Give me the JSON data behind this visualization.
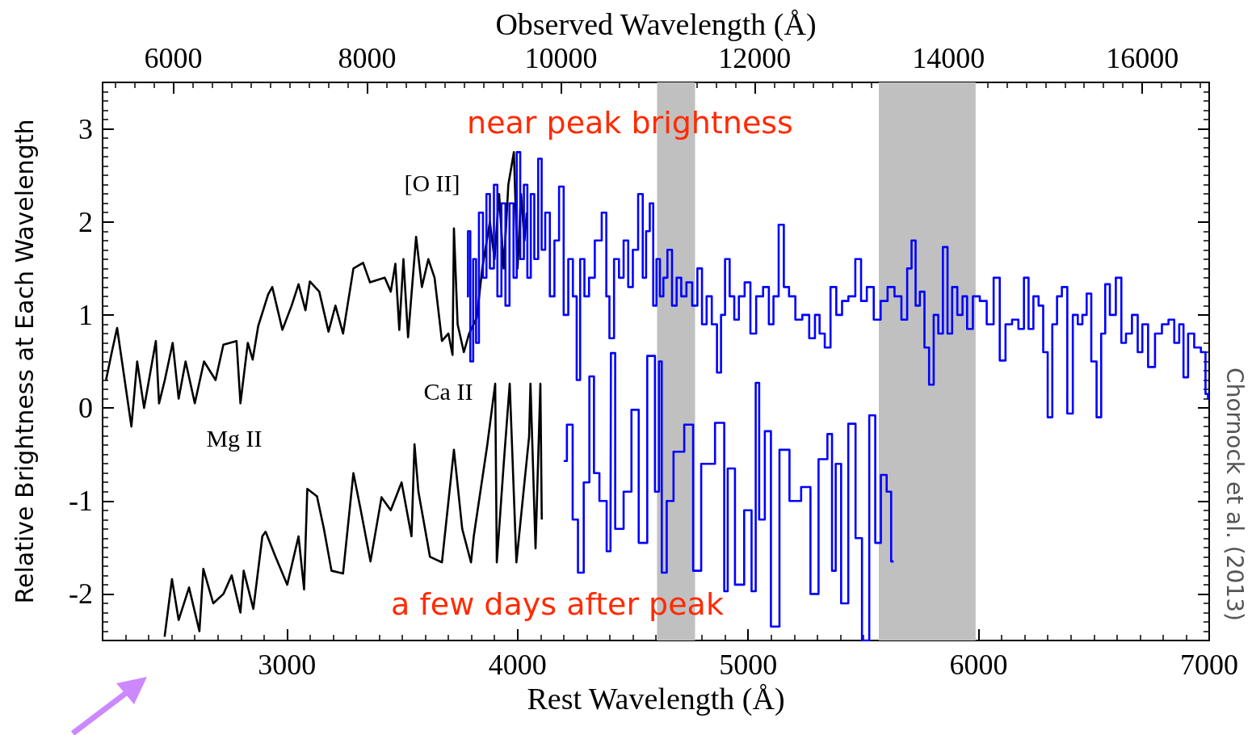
{
  "chart_data": {
    "type": "line",
    "xlabel": "Rest Wavelength (Å)",
    "x2label": "Observed Wavelength (Å)",
    "ylabel": "Relative Brightness at Each Wavelength",
    "xlim": [
      2200,
      7000
    ],
    "xticks": [
      3000,
      4000,
      5000,
      6000,
      7000
    ],
    "x2lim": [
      5270,
      16690
    ],
    "x2ticks": [
      6000,
      8000,
      10000,
      12000,
      14000,
      16000
    ],
    "ylim": [
      -2.5,
      3.5
    ],
    "yticks": [
      -2,
      -1,
      0,
      1,
      2,
      3
    ],
    "grid": false,
    "legend": false,
    "marker": "none",
    "line_style": "solid",
    "bands": [
      {
        "axis": "x",
        "from": 4605,
        "to": 4770,
        "color": "#c0c0c0"
      },
      {
        "axis": "x",
        "from": 5567,
        "to": 5987,
        "color": "#c0c0c0"
      }
    ],
    "annotations": [
      "near peak brightness",
      "a few days after peak",
      "Mg II",
      "[O II]",
      "Ca II",
      "Chornock et al. (2013)"
    ],
    "series": [
      {
        "color": "#000000",
        "x": [
          2215,
          2240,
          2263,
          2290,
          2325,
          2350,
          2380,
          2431,
          2445,
          2470,
          2504,
          2530,
          2560,
          2600,
          2640,
          2690,
          2724,
          2781,
          2798,
          2830,
          2851,
          2875,
          2918,
          2936,
          2980,
          3020,
          3050,
          3080,
          3099,
          3140,
          3180,
          3210,
          3243,
          3288,
          3330,
          3360,
          3424,
          3450,
          3470,
          3487,
          3505,
          3525,
          3560,
          3585,
          3613,
          3640,
          3672,
          3700,
          3718,
          3724,
          3740,
          3767,
          3790,
          3823,
          3847,
          3880,
          3900,
          3920,
          3940,
          3960,
          3984,
          4000,
          4015,
          4030,
          4040
        ],
        "values": [
          0.3,
          0.6,
          0.86,
          0.4,
          -0.2,
          0.5,
          0.0,
          0.72,
          0.05,
          0.3,
          0.7,
          0.1,
          0.5,
          0.05,
          0.5,
          0.3,
          0.68,
          0.72,
          0.05,
          0.7,
          0.52,
          0.88,
          1.22,
          1.3,
          0.84,
          1.1,
          1.33,
          1.05,
          1.36,
          1.25,
          0.82,
          1.1,
          0.8,
          1.5,
          1.56,
          1.35,
          1.4,
          1.25,
          1.55,
          0.84,
          1.6,
          0.76,
          1.84,
          1.3,
          1.6,
          1.4,
          0.72,
          0.8,
          0.57,
          1.93,
          0.9,
          0.6,
          0.8,
          0.97,
          1.5,
          2.0,
          1.6,
          2.3,
          1.5,
          2.4,
          2.75,
          1.5,
          2.3,
          1.8,
          2.1
        ]
      },
      {
        "type": "step",
        "color": "#0000ff",
        "x": [
          3780,
          3790,
          3800,
          3815,
          3825,
          3840,
          3860,
          3870,
          3890,
          3905,
          3920,
          3940,
          3955,
          3975,
          3990,
          4003,
          4020,
          4035,
          4050,
          4065,
          4080,
          4099,
          4110,
          4130,
          4150,
          4170,
          4190,
          4210,
          4230,
          4250,
          4263,
          4280,
          4300,
          4320,
          4350,
          4380,
          4390,
          4407,
          4430,
          4450,
          4470,
          4490,
          4510,
          4536,
          4550,
          4565,
          4582,
          4595,
          4610,
          4625,
          4640,
          4660,
          4680,
          4700,
          4720,
          4745,
          4770,
          4790,
          4810,
          4830,
          4855,
          4875,
          4890,
          4910,
          4930,
          4950,
          4970,
          5000,
          5020,
          5050,
          5080,
          5100,
          5120,
          5145,
          5165,
          5190,
          5220,
          5250,
          5280,
          5300,
          5320,
          5345,
          5370,
          5395,
          5420,
          5450,
          5480,
          5500,
          5530,
          5560,
          5590,
          5620,
          5650,
          5680,
          5700,
          5718,
          5735,
          5755,
          5775,
          5795,
          5815,
          5835,
          5855,
          5875,
          5895,
          5920,
          5940,
          5960,
          5990,
          6020,
          6050,
          6080,
          6103,
          6130,
          6160,
          6185,
          6208,
          6225,
          6250,
          6270,
          6290,
          6309,
          6330,
          6350,
          6372,
          6397,
          6420,
          6440,
          6460,
          6477,
          6500,
          6523,
          6540,
          6558,
          6580,
          6610,
          6628,
          6650,
          6680,
          6700,
          6720,
          6750,
          6780,
          6810,
          6837,
          6860,
          6880,
          6897,
          6920,
          6950,
          6978,
          6990,
          7000
        ],
        "values": [
          1.2,
          1.9,
          0.5,
          1.6,
          0.7,
          2.1,
          1.4,
          2.3,
          1.5,
          2.4,
          1.2,
          2.2,
          1.1,
          2.2,
          1.4,
          2.75,
          1.6,
          2.4,
          1.4,
          2.3,
          1.6,
          2.68,
          1.7,
          2.1,
          1.2,
          1.8,
          2.38,
          1.0,
          1.6,
          1.2,
          0.3,
          1.6,
          1.2,
          1.4,
          1.8,
          2.1,
          1.2,
          0.75,
          1.6,
          1.4,
          1.8,
          1.3,
          1.7,
          2.3,
          1.4,
          1.9,
          2.2,
          1.1,
          1.6,
          1.2,
          1.4,
          1.7,
          1.1,
          1.4,
          1.2,
          1.35,
          1.1,
          1.5,
          0.9,
          1.2,
          0.9,
          0.38,
          1.0,
          1.6,
          1.2,
          0.95,
          1.2,
          1.35,
          0.8,
          1.2,
          1.3,
          0.9,
          1.2,
          1.97,
          1.3,
          1.2,
          0.95,
          1.0,
          0.75,
          1.0,
          0.8,
          0.65,
          1.3,
          1.0,
          1.15,
          1.2,
          1.6,
          1.15,
          1.3,
          0.95,
          1.15,
          1.3,
          1.2,
          0.95,
          1.5,
          1.8,
          1.1,
          1.25,
          0.65,
          0.25,
          1.0,
          0.8,
          1.73,
          0.8,
          1.3,
          1.0,
          1.2,
          0.85,
          1.2,
          1.15,
          0.9,
          1.4,
          0.51,
          0.9,
          0.95,
          0.85,
          1.4,
          0.85,
          1.2,
          1.1,
          0.6,
          -0.1,
          0.9,
          1.2,
          1.3,
          -0.06,
          1.0,
          0.9,
          1.0,
          1.23,
          0.5,
          -0.1,
          0.8,
          1.33,
          1.0,
          1.4,
          0.7,
          0.8,
          1.0,
          0.6,
          0.9,
          0.44,
          0.8,
          0.9,
          0.95,
          0.7,
          0.9,
          0.33,
          0.8,
          0.65,
          0.6,
          0.15,
          0.1
        ]
      },
      {
        "color": "#000000",
        "x": [
          2469,
          2501,
          2530,
          2575,
          2620,
          2637,
          2680,
          2724,
          2760,
          2798,
          2812,
          2854,
          2893,
          2907,
          2950,
          3001,
          3050,
          3074,
          3088,
          3130,
          3160,
          3193,
          3243,
          3288,
          3320,
          3362,
          3410,
          3450,
          3497,
          3540,
          3553,
          3570,
          3620,
          3672,
          3724,
          3760,
          3798,
          3810,
          3868,
          3903,
          3910,
          3940,
          3966,
          3995,
          4030,
          4050,
          4056,
          4078,
          4099,
          4105
        ],
        "values": [
          -2.46,
          -1.84,
          -2.28,
          -1.93,
          -2.4,
          -1.73,
          -2.1,
          -2.0,
          -1.8,
          -2.2,
          -1.75,
          -2.16,
          -1.38,
          -1.33,
          -1.6,
          -1.9,
          -1.38,
          -1.95,
          -0.87,
          -0.95,
          -1.3,
          -1.75,
          -1.78,
          -0.7,
          -1.1,
          -1.65,
          -0.96,
          -1.1,
          -0.8,
          -1.38,
          -0.39,
          -0.9,
          -1.6,
          -1.66,
          -0.45,
          -1.3,
          -1.66,
          -1.38,
          -0.41,
          0.26,
          -1.66,
          -0.6,
          0.26,
          -1.66,
          -0.8,
          -0.31,
          0.26,
          -1.51,
          0.26,
          -1.2
        ]
      },
      {
        "type": "step",
        "color": "#0000ff",
        "x": [
          4200,
          4228,
          4250,
          4274,
          4300,
          4323,
          4340,
          4370,
          4403,
          4407,
          4440,
          4480,
          4508,
          4543,
          4582,
          4610,
          4617,
          4634,
          4660,
          4693,
          4753,
          4770,
          4823,
          4890,
          4903,
          4920,
          4966,
          5000,
          5030,
          5036,
          5060,
          5085,
          5113,
          5159,
          5200,
          5260,
          5281,
          5330,
          5358,
          5370,
          5390,
          5417,
          5452,
          5480,
          5508,
          5543,
          5560,
          5592,
          5610,
          5631
        ],
        "values": [
          -0.57,
          -0.18,
          -1.2,
          -1.77,
          -0.8,
          0.34,
          -0.7,
          -1.0,
          -1.54,
          0.59,
          -1.3,
          -0.9,
          -0.02,
          -1.45,
          0.56,
          -0.9,
          0.5,
          -1.77,
          -1.0,
          -0.47,
          -0.18,
          -1.75,
          -0.6,
          -0.16,
          -1.97,
          -0.65,
          -1.9,
          -1.1,
          -1.97,
          0.27,
          -1.2,
          -0.25,
          -2.35,
          -0.45,
          -1.0,
          -0.85,
          -2.0,
          -0.55,
          -0.28,
          -1.75,
          -0.6,
          -2.1,
          -0.17,
          -1.4,
          -2.5,
          -0.08,
          -1.45,
          -0.72,
          -0.9,
          -1.65
        ]
      }
    ]
  }
}
